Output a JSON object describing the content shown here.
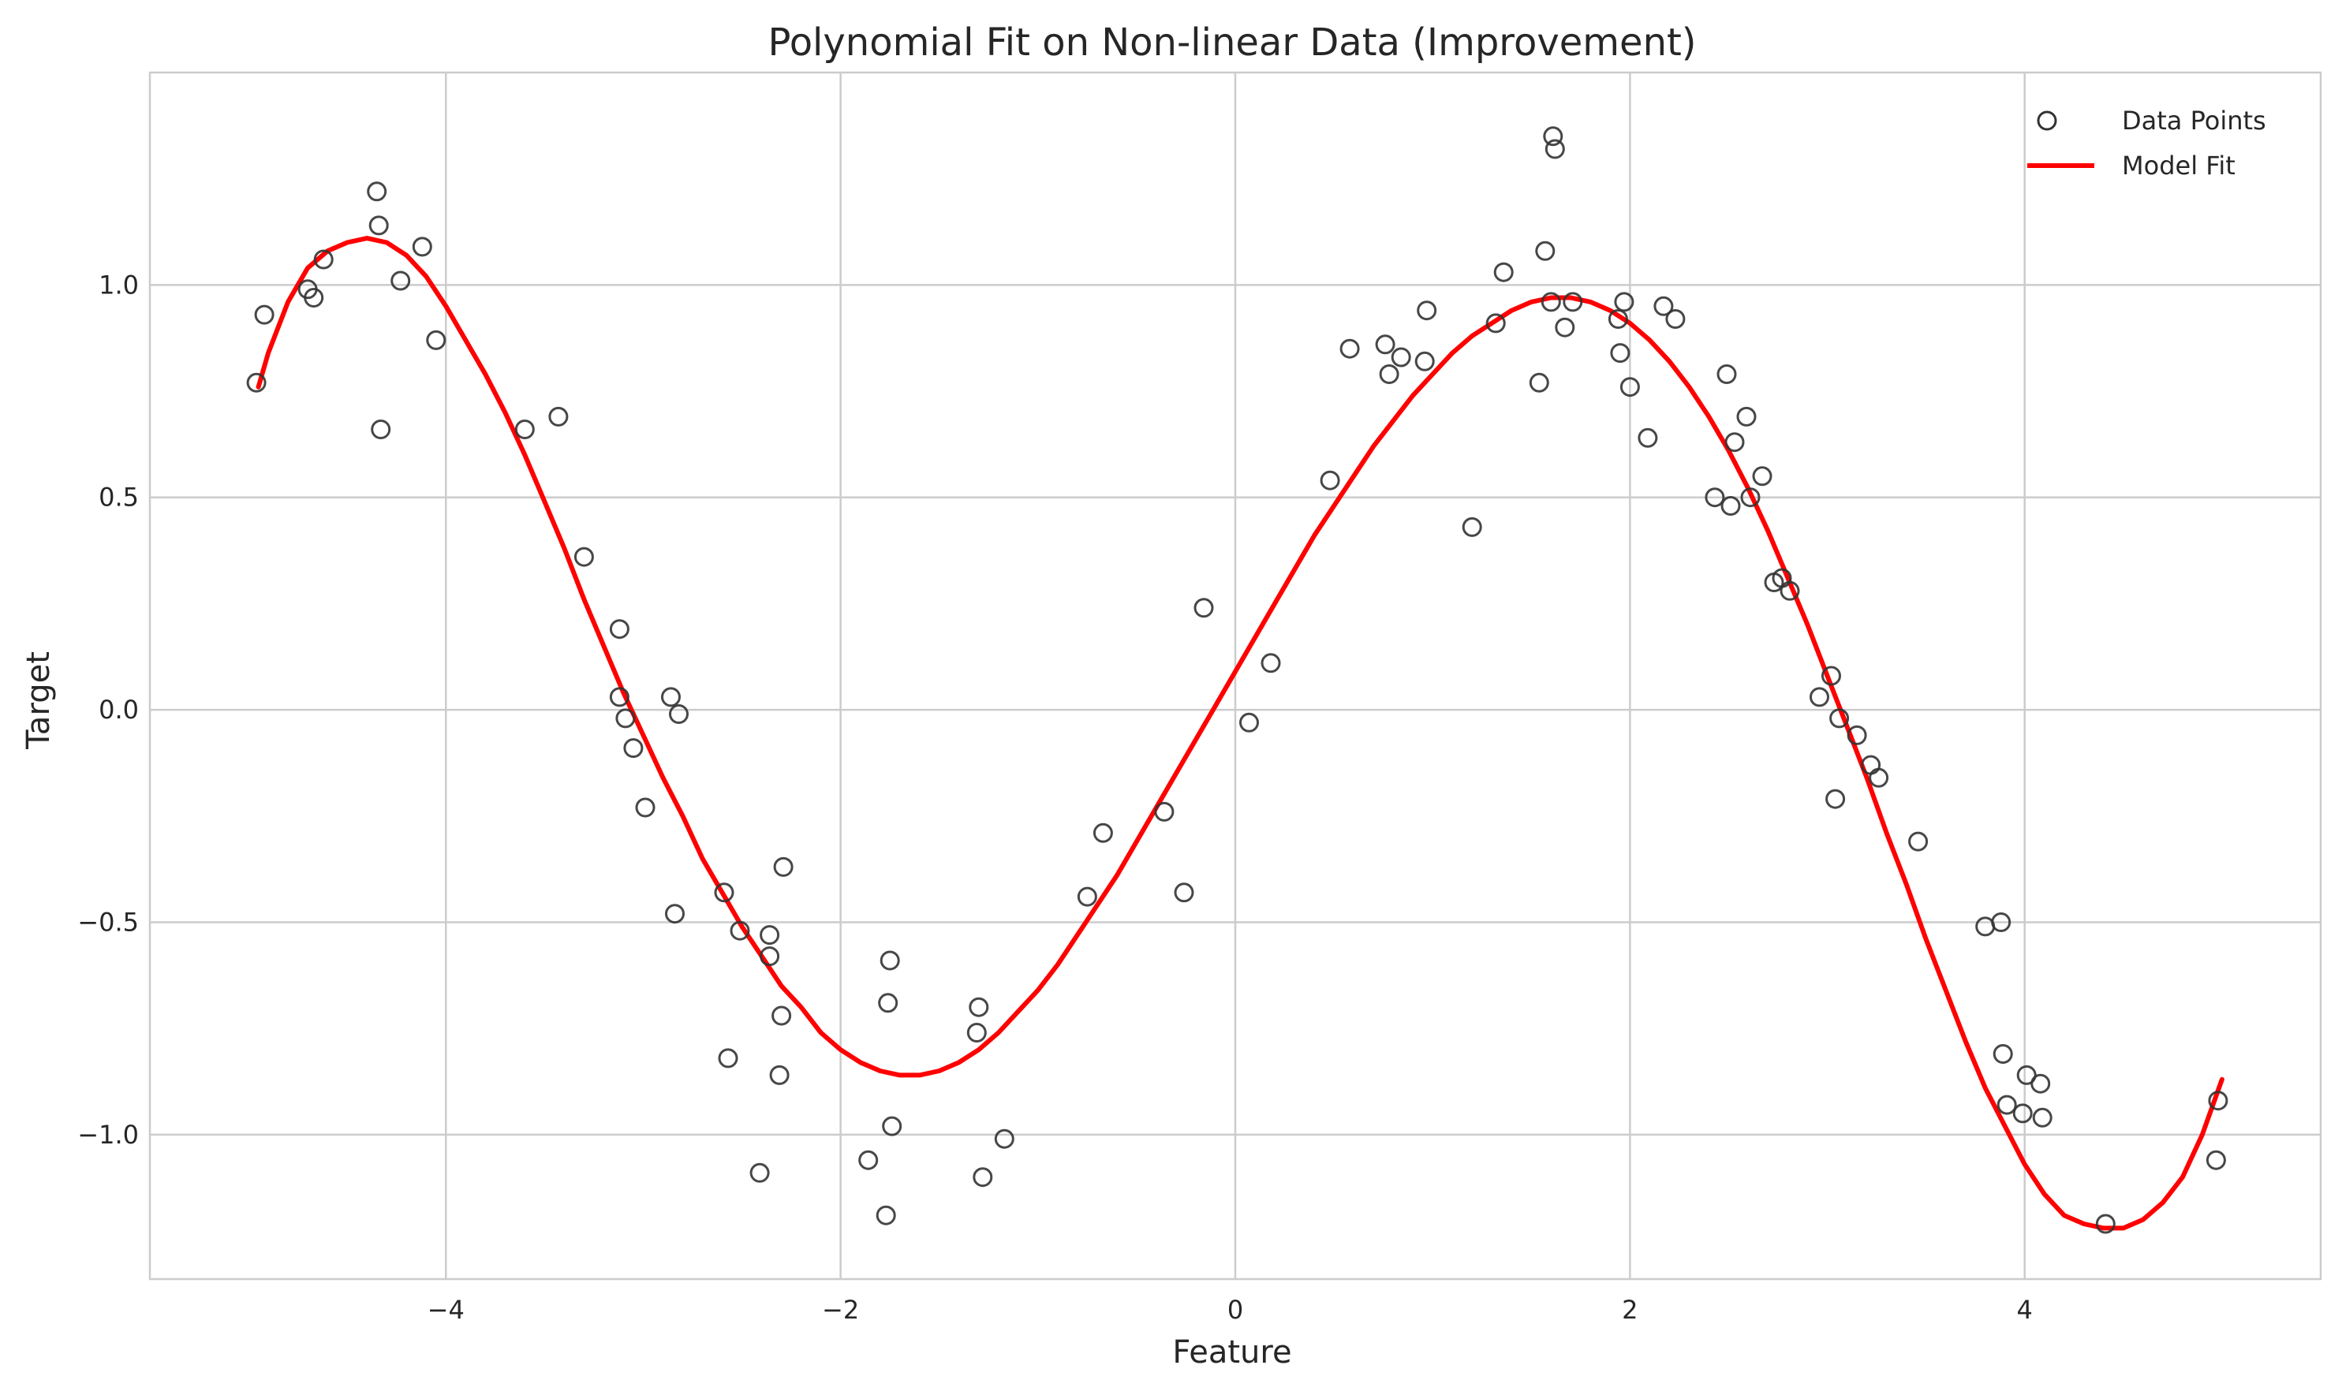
{
  "chart_data": {
    "type": "scatter",
    "title": "Polynomial Fit on Non-linear Data (Improvement)",
    "xlabel": "Feature",
    "ylabel": "Target",
    "xlim": [
      -5.5,
      5.5
    ],
    "ylim": [
      -1.34,
      1.5
    ],
    "xticks": [
      -4,
      -2,
      0,
      2,
      4
    ],
    "xtick_labels": [
      "−4",
      "−2",
      "0",
      "2",
      "4"
    ],
    "yticks": [
      -1.0,
      -0.5,
      0.0,
      0.5,
      1.0
    ],
    "ytick_labels": [
      "−1.0",
      "−0.5",
      "0.0",
      "0.5",
      "1.0"
    ],
    "grid": true,
    "legend_position": "top-right",
    "series": [
      {
        "name": "Data Points",
        "kind": "scatter",
        "color": "#333333",
        "points": [
          [
            -4.96,
            0.77
          ],
          [
            -4.92,
            0.93
          ],
          [
            -4.7,
            0.99
          ],
          [
            -4.67,
            0.97
          ],
          [
            -4.62,
            1.06
          ],
          [
            -4.35,
            1.22
          ],
          [
            -4.34,
            1.14
          ],
          [
            -4.33,
            0.66
          ],
          [
            -4.23,
            1.01
          ],
          [
            -4.12,
            1.09
          ],
          [
            -4.05,
            0.87
          ],
          [
            -3.6,
            0.66
          ],
          [
            -3.43,
            0.69
          ],
          [
            -3.3,
            0.36
          ],
          [
            -3.12,
            0.19
          ],
          [
            -3.12,
            0.03
          ],
          [
            -3.09,
            -0.02
          ],
          [
            -3.05,
            -0.09
          ],
          [
            -2.99,
            -0.23
          ],
          [
            -2.86,
            0.03
          ],
          [
            -2.84,
            -0.48
          ],
          [
            -2.82,
            -0.01
          ],
          [
            -2.59,
            -0.43
          ],
          [
            -2.57,
            -0.82
          ],
          [
            -2.51,
            -0.52
          ],
          [
            -2.41,
            -1.09
          ],
          [
            -2.36,
            -0.53
          ],
          [
            -2.36,
            -0.58
          ],
          [
            -2.31,
            -0.86
          ],
          [
            -2.3,
            -0.72
          ],
          [
            -2.29,
            -0.37
          ],
          [
            -1.86,
            -1.06
          ],
          [
            -1.77,
            -1.19
          ],
          [
            -1.76,
            -0.69
          ],
          [
            -1.75,
            -0.59
          ],
          [
            -1.74,
            -0.98
          ],
          [
            -1.31,
            -0.76
          ],
          [
            -1.3,
            -0.7
          ],
          [
            -1.28,
            -1.1
          ],
          [
            -1.17,
            -1.01
          ],
          [
            -0.75,
            -0.44
          ],
          [
            -0.67,
            -0.29
          ],
          [
            -0.36,
            -0.24
          ],
          [
            -0.26,
            -0.43
          ],
          [
            -0.16,
            0.24
          ],
          [
            0.07,
            -0.03
          ],
          [
            0.18,
            0.11
          ],
          [
            0.48,
            0.54
          ],
          [
            0.58,
            0.85
          ],
          [
            0.76,
            0.86
          ],
          [
            0.78,
            0.79
          ],
          [
            0.84,
            0.83
          ],
          [
            0.96,
            0.82
          ],
          [
            0.97,
            0.94
          ],
          [
            1.2,
            0.43
          ],
          [
            1.32,
            0.91
          ],
          [
            1.36,
            1.03
          ],
          [
            1.54,
            0.77
          ],
          [
            1.57,
            1.08
          ],
          [
            1.6,
            0.96
          ],
          [
            1.61,
            1.35
          ],
          [
            1.62,
            1.32
          ],
          [
            1.67,
            0.9
          ],
          [
            1.71,
            0.96
          ],
          [
            1.94,
            0.92
          ],
          [
            1.95,
            0.84
          ],
          [
            1.97,
            0.96
          ],
          [
            2.0,
            0.76
          ],
          [
            2.09,
            0.64
          ],
          [
            2.17,
            0.95
          ],
          [
            2.23,
            0.92
          ],
          [
            2.43,
            0.5
          ],
          [
            2.49,
            0.79
          ],
          [
            2.51,
            0.48
          ],
          [
            2.53,
            0.63
          ],
          [
            2.59,
            0.69
          ],
          [
            2.61,
            0.5
          ],
          [
            2.67,
            0.55
          ],
          [
            2.73,
            0.3
          ],
          [
            2.77,
            0.31
          ],
          [
            2.81,
            0.28
          ],
          [
            2.96,
            0.03
          ],
          [
            3.02,
            0.08
          ],
          [
            3.06,
            -0.02
          ],
          [
            3.04,
            -0.21
          ],
          [
            3.15,
            -0.06
          ],
          [
            3.22,
            -0.13
          ],
          [
            3.26,
            -0.16
          ],
          [
            3.46,
            -0.31
          ],
          [
            3.8,
            -0.51
          ],
          [
            3.88,
            -0.5
          ],
          [
            3.89,
            -0.81
          ],
          [
            3.91,
            -0.93
          ],
          [
            3.99,
            -0.95
          ],
          [
            4.01,
            -0.86
          ],
          [
            4.08,
            -0.88
          ],
          [
            4.09,
            -0.96
          ],
          [
            4.41,
            -1.21
          ],
          [
            4.98,
            -0.92
          ],
          [
            4.97,
            -1.06
          ]
        ]
      },
      {
        "name": "Model Fit",
        "kind": "line",
        "color": "#ff0000",
        "points": [
          [
            -4.95,
            0.76
          ],
          [
            -4.9,
            0.84
          ],
          [
            -4.8,
            0.96
          ],
          [
            -4.7,
            1.04
          ],
          [
            -4.6,
            1.08
          ],
          [
            -4.5,
            1.1
          ],
          [
            -4.4,
            1.11
          ],
          [
            -4.3,
            1.1
          ],
          [
            -4.2,
            1.07
          ],
          [
            -4.1,
            1.02
          ],
          [
            -4.0,
            0.95
          ],
          [
            -3.9,
            0.87
          ],
          [
            -3.8,
            0.79
          ],
          [
            -3.7,
            0.7
          ],
          [
            -3.6,
            0.6
          ],
          [
            -3.5,
            0.49
          ],
          [
            -3.4,
            0.38
          ],
          [
            -3.3,
            0.26
          ],
          [
            -3.2,
            0.15
          ],
          [
            -3.1,
            0.04
          ],
          [
            -3.0,
            -0.06
          ],
          [
            -2.9,
            -0.16
          ],
          [
            -2.8,
            -0.25
          ],
          [
            -2.7,
            -0.35
          ],
          [
            -2.6,
            -0.43
          ],
          [
            -2.5,
            -0.51
          ],
          [
            -2.4,
            -0.58
          ],
          [
            -2.3,
            -0.65
          ],
          [
            -2.2,
            -0.7
          ],
          [
            -2.1,
            -0.76
          ],
          [
            -2.0,
            -0.8
          ],
          [
            -1.9,
            -0.83
          ],
          [
            -1.8,
            -0.85
          ],
          [
            -1.7,
            -0.86
          ],
          [
            -1.6,
            -0.86
          ],
          [
            -1.5,
            -0.85
          ],
          [
            -1.4,
            -0.83
          ],
          [
            -1.3,
            -0.8
          ],
          [
            -1.2,
            -0.76
          ],
          [
            -1.1,
            -0.71
          ],
          [
            -1.0,
            -0.66
          ],
          [
            -0.9,
            -0.6
          ],
          [
            -0.8,
            -0.53
          ],
          [
            -0.7,
            -0.46
          ],
          [
            -0.6,
            -0.39
          ],
          [
            -0.5,
            -0.31
          ],
          [
            -0.4,
            -0.23
          ],
          [
            -0.3,
            -0.15
          ],
          [
            -0.2,
            -0.07
          ],
          [
            -0.1,
            0.01
          ],
          [
            0.0,
            0.09
          ],
          [
            0.1,
            0.17
          ],
          [
            0.2,
            0.25
          ],
          [
            0.3,
            0.33
          ],
          [
            0.4,
            0.41
          ],
          [
            0.5,
            0.48
          ],
          [
            0.6,
            0.55
          ],
          [
            0.7,
            0.62
          ],
          [
            0.8,
            0.68
          ],
          [
            0.9,
            0.74
          ],
          [
            1.0,
            0.79
          ],
          [
            1.1,
            0.84
          ],
          [
            1.2,
            0.88
          ],
          [
            1.3,
            0.91
          ],
          [
            1.4,
            0.94
          ],
          [
            1.5,
            0.96
          ],
          [
            1.6,
            0.97
          ],
          [
            1.7,
            0.97
          ],
          [
            1.8,
            0.96
          ],
          [
            1.9,
            0.94
          ],
          [
            2.0,
            0.91
          ],
          [
            2.1,
            0.87
          ],
          [
            2.2,
            0.82
          ],
          [
            2.3,
            0.76
          ],
          [
            2.4,
            0.69
          ],
          [
            2.5,
            0.61
          ],
          [
            2.6,
            0.52
          ],
          [
            2.7,
            0.42
          ],
          [
            2.8,
            0.31
          ],
          [
            2.9,
            0.2
          ],
          [
            3.0,
            0.08
          ],
          [
            3.1,
            -0.04
          ],
          [
            3.2,
            -0.16
          ],
          [
            3.3,
            -0.29
          ],
          [
            3.4,
            -0.41
          ],
          [
            3.5,
            -0.54
          ],
          [
            3.6,
            -0.66
          ],
          [
            3.7,
            -0.78
          ],
          [
            3.8,
            -0.89
          ],
          [
            3.9,
            -0.98
          ],
          [
            4.0,
            -1.07
          ],
          [
            4.1,
            -1.14
          ],
          [
            4.2,
            -1.19
          ],
          [
            4.3,
            -1.21
          ],
          [
            4.4,
            -1.22
          ],
          [
            4.5,
            -1.22
          ],
          [
            4.6,
            -1.2
          ],
          [
            4.7,
            -1.16
          ],
          [
            4.8,
            -1.1
          ],
          [
            4.9,
            -1.0
          ],
          [
            5.0,
            -0.87
          ]
        ]
      }
    ]
  }
}
